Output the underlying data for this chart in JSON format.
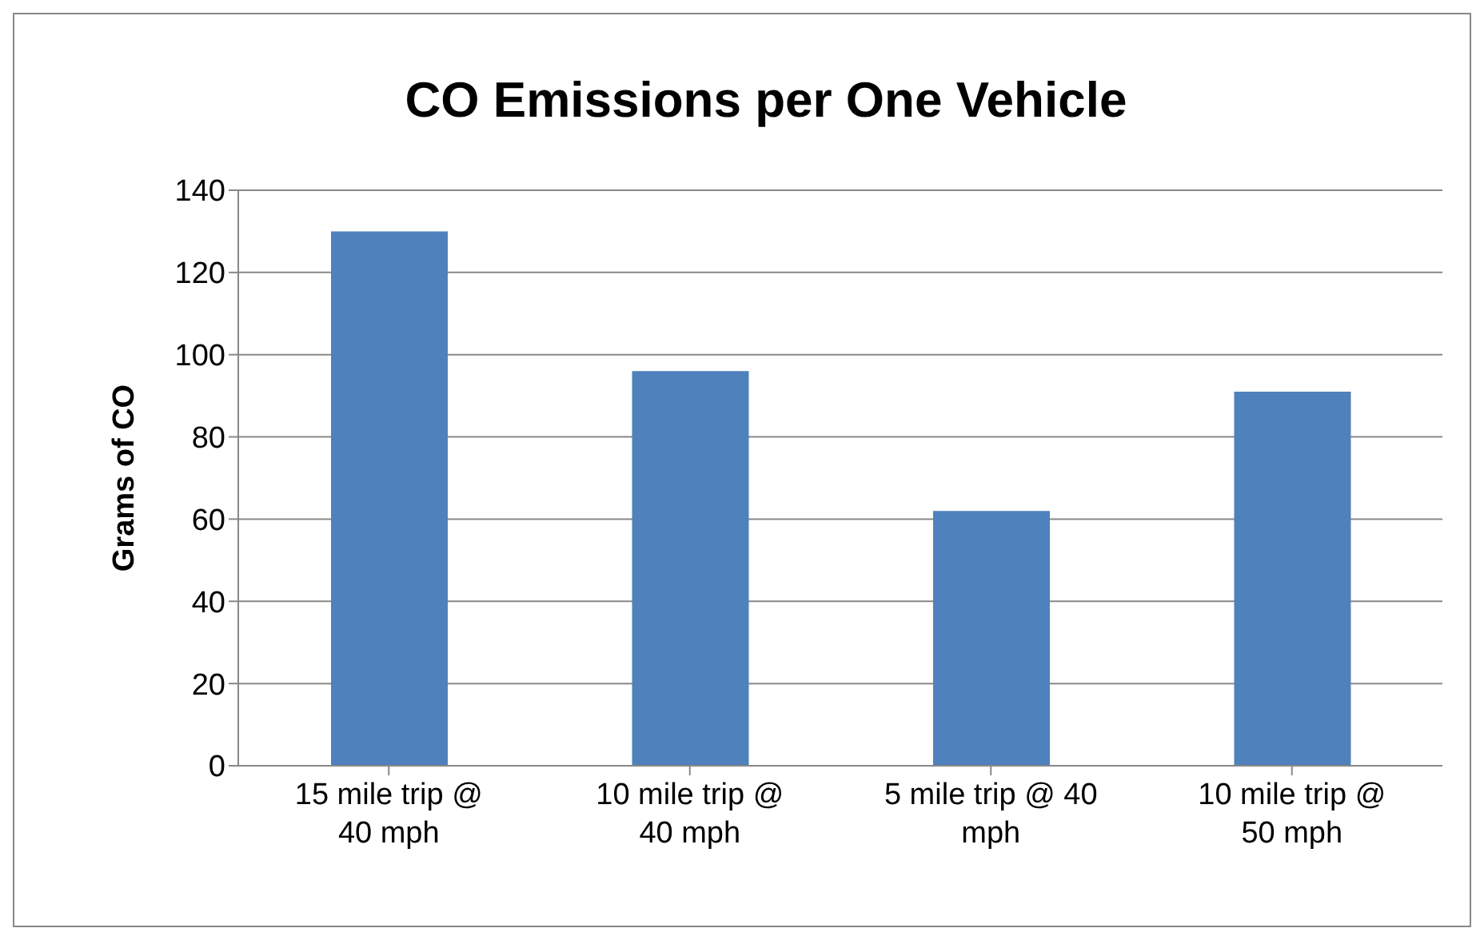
{
  "chart_data": {
    "type": "bar",
    "title": "CO Emissions per One Vehicle",
    "ylabel": "Grams of CO",
    "categories": [
      "15 mile trip @ 40 mph",
      "10 mile trip @ 40 mph",
      "5 mile trip @ 40 mph",
      "10 mile trip @ 50 mph"
    ],
    "values": [
      130,
      96,
      62,
      91
    ],
    "color": "#4f81bd",
    "ylim": [
      0,
      140
    ],
    "yticks": [
      0,
      20,
      40,
      60,
      80,
      100,
      120,
      140
    ],
    "grid": "y",
    "legend": false
  }
}
